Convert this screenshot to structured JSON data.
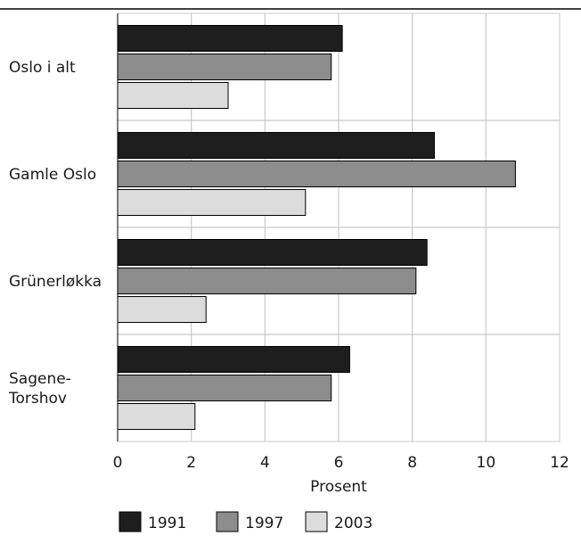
{
  "chart_data": {
    "type": "bar",
    "orientation": "horizontal",
    "categories": [
      "Oslo i alt",
      "Gamle Oslo",
      "Grünerløkka",
      "Sagene-\nTorshov"
    ],
    "series": [
      {
        "name": "1991",
        "values": [
          6.1,
          8.6,
          8.4,
          6.3
        ],
        "color": "#1e1e1e"
      },
      {
        "name": "1997",
        "values": [
          5.8,
          10.8,
          8.1,
          5.8
        ],
        "color": "#8c8c8c"
      },
      {
        "name": "2003",
        "values": [
          3.0,
          5.1,
          2.4,
          2.1
        ],
        "color": "#dcdcdc"
      }
    ],
    "xlabel": "Prosent",
    "xlim": [
      0,
      12
    ],
    "xticks": [
      0,
      2,
      4,
      6,
      8,
      10,
      12
    ],
    "grid": true,
    "legend": "bottom"
  }
}
